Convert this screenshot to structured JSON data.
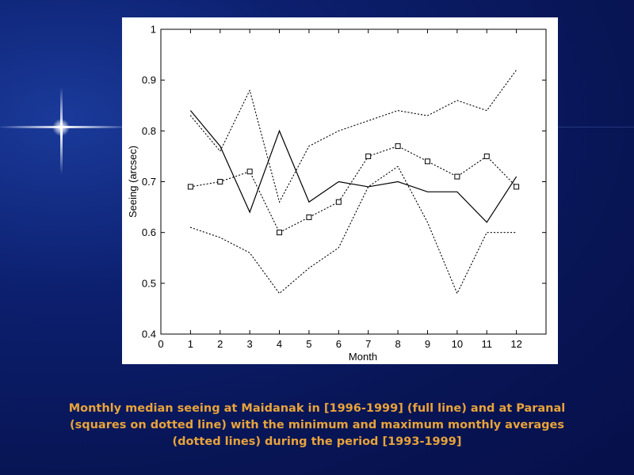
{
  "caption": "Monthly median seeing at Maidanak in [1996-1999] (full line) and at Paranal (squares on dotted line) with the minimum and maximum monthly averages (dotted lines) during the period [1993-1999]",
  "colors": {
    "background": "#0c1f6e",
    "caption": "#e8a33a",
    "chart_bg": "#ffffff",
    "ink": "#000000"
  },
  "chart_data": {
    "type": "line",
    "xlabel": "Month",
    "ylabel": "Seeing (arcsec)",
    "xlim": [
      0,
      13
    ],
    "ylim": [
      0.4,
      1.0
    ],
    "x_ticks": [
      0,
      1,
      2,
      3,
      4,
      5,
      6,
      7,
      8,
      9,
      10,
      11,
      12
    ],
    "y_ticks": [
      0.4,
      0.5,
      0.6,
      0.7,
      0.8,
      0.9,
      1.0
    ],
    "y_tick_labels": [
      "0.4",
      "0.5",
      "0.6",
      "0.7",
      "0.8",
      "0.9",
      "1"
    ],
    "x": [
      1,
      2,
      3,
      4,
      5,
      6,
      7,
      8,
      9,
      10,
      11,
      12
    ],
    "grid": false,
    "series": [
      {
        "style": "solid",
        "marker": "none",
        "values": [
          0.84,
          0.77,
          0.64,
          0.8,
          0.66,
          0.7,
          0.69,
          0.7,
          0.68,
          0.68,
          0.62,
          0.71
        ]
      },
      {
        "style": "dotted",
        "marker": "square",
        "values": [
          0.69,
          0.7,
          0.72,
          0.6,
          0.63,
          0.66,
          0.75,
          0.77,
          0.74,
          0.71,
          0.75,
          0.69
        ]
      },
      {
        "style": "dotted",
        "marker": "none",
        "values": [
          0.83,
          0.76,
          0.88,
          0.66,
          0.77,
          0.8,
          0.82,
          0.84,
          0.83,
          0.86,
          0.84,
          0.92
        ]
      },
      {
        "style": "dotted",
        "marker": "none",
        "values": [
          0.61,
          0.59,
          0.56,
          0.48,
          0.53,
          0.57,
          0.69,
          0.73,
          0.62,
          0.48,
          0.6,
          0.6
        ]
      }
    ]
  }
}
